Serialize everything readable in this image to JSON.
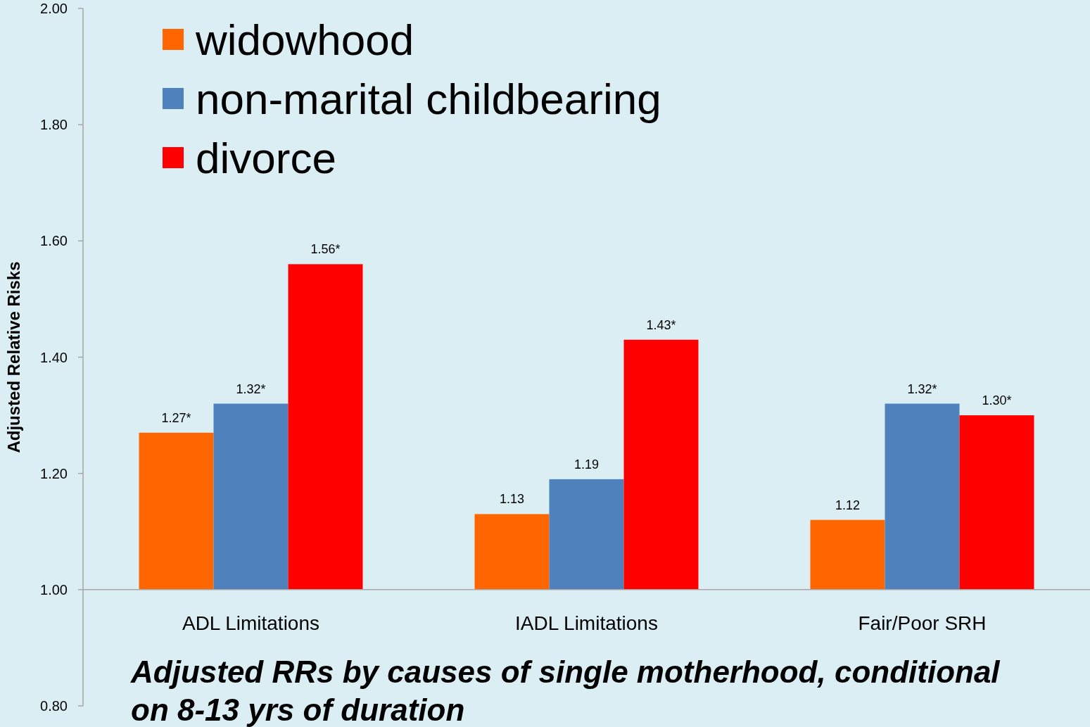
{
  "chart_data": {
    "type": "bar",
    "title": "Adjusted RRs by causes of single motherhood, conditional\non 8-13 yrs of duration",
    "ylabel": "Adjusted Relative Risks",
    "categories": [
      "ADL Limitations",
      "IADL Limitations",
      "Fair/Poor SRH"
    ],
    "series": [
      {
        "name": "widowhood",
        "color": "#ff6600",
        "base": [
          1,
          1,
          1
        ],
        "values": [
          0.27,
          0.13,
          0.12
        ],
        "value_labels": [
          "1.27*",
          "1.13",
          "1.12"
        ]
      },
      {
        "name": "non-marital childbearing",
        "color": "#4f81bd",
        "base": [
          1,
          1,
          1
        ],
        "values": [
          0.32,
          0.19,
          0.32
        ],
        "value_labels": [
          "1.32*",
          "1.19",
          "1.32*"
        ]
      },
      {
        "name": "divorce",
        "color": "#ff0000",
        "base": [
          1,
          1,
          1
        ],
        "values": [
          0.56,
          0.43,
          0.3
        ],
        "value_labels": [
          "1.56*",
          "1.43*",
          "1.30*"
        ]
      }
    ],
    "ylim": [
      0.8,
      2
    ],
    "yticks": [
      {
        "value": 0.8,
        "label": "0.80"
      },
      {
        "value": 1,
        "label": "1.00"
      },
      {
        "value": 1.2,
        "label": "1.20"
      },
      {
        "value": 1.4,
        "label": "1.40"
      },
      {
        "value": 1.6,
        "label": "1.60"
      },
      {
        "value": 1.8,
        "label": "1.80"
      },
      {
        "value": 2,
        "label": "2.00"
      }
    ],
    "grid": false,
    "legend": "top left"
  }
}
